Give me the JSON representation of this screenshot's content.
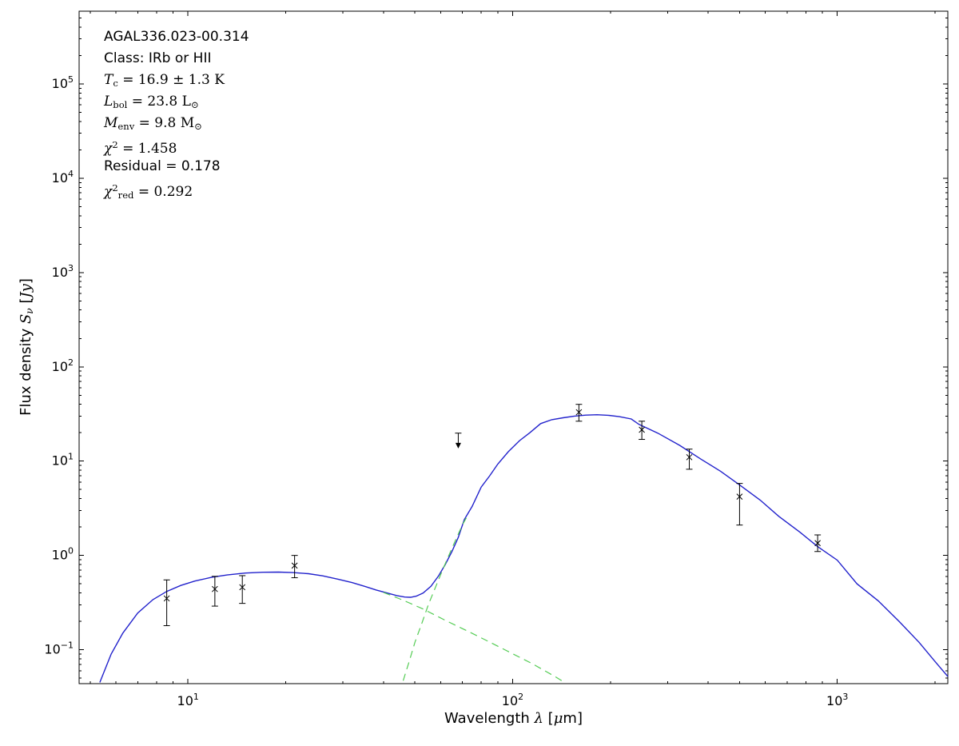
{
  "annotation": {
    "lines": [
      {
        "math": false,
        "segments": [
          {
            "t": "AGAL336.023-00.314",
            "s": "n"
          }
        ]
      },
      {
        "math": false,
        "segments": [
          {
            "t": "Class: IRb or HII",
            "s": "n"
          }
        ]
      },
      {
        "math": true,
        "segments": [
          {
            "t": "T",
            "s": "i"
          },
          {
            "t": "c",
            "s": "sub"
          },
          {
            "t": " = 16.9 ± 1.3 K",
            "s": "n"
          }
        ]
      },
      {
        "math": true,
        "segments": [
          {
            "t": "L",
            "s": "i"
          },
          {
            "t": "bol",
            "s": "sub"
          },
          {
            "t": " = 23.8 L",
            "s": "n"
          },
          {
            "t": "⊙",
            "s": "sub"
          }
        ]
      },
      {
        "math": true,
        "segments": [
          {
            "t": "M",
            "s": "i"
          },
          {
            "t": "env",
            "s": "sub"
          },
          {
            "t": " = 9.8 M",
            "s": "n"
          },
          {
            "t": "⊙",
            "s": "sub"
          }
        ]
      },
      {
        "math": true,
        "segments": [
          {
            "t": "χ",
            "s": "i"
          },
          {
            "t": "2",
            "s": "sup"
          },
          {
            "t": " = 1.458",
            "s": "n"
          }
        ]
      },
      {
        "math": false,
        "segments": [
          {
            "t": "Residual = 0.178",
            "s": "n"
          }
        ]
      },
      {
        "math": true,
        "segments": [
          {
            "t": "χ",
            "s": "i"
          },
          {
            "t": "2",
            "s": "sup"
          },
          {
            "t": "red",
            "s": "sub"
          },
          {
            "t": " = 0.292",
            "s": "n"
          }
        ]
      }
    ]
  },
  "axes_labels": {
    "xlabel_segments": [
      {
        "t": "Wavelength ",
        "s": "n"
      },
      {
        "t": "λ",
        "s": "i"
      },
      {
        "t": " [",
        "s": "n"
      },
      {
        "t": "μ",
        "s": "i"
      },
      {
        "t": "m]",
        "s": "n"
      }
    ],
    "ylabel_segments": [
      {
        "t": "Flux density ",
        "s": "n"
      },
      {
        "t": "S",
        "s": "i"
      },
      {
        "t": "ν",
        "s": "subi"
      },
      {
        "t": " [",
        "s": "n"
      },
      {
        "t": "Jy",
        "s": "i"
      },
      {
        "t": "]",
        "s": "n"
      }
    ]
  },
  "chart_data": {
    "type": "line",
    "title": "",
    "xlabel": "Wavelength λ [μm]",
    "ylabel": "Flux density Sν [Jy]",
    "grid": false,
    "legend": "none",
    "x_axis": {
      "scale": "log",
      "min": 4.62,
      "max": 2190,
      "major_tick_exponents": [
        1,
        2,
        3
      ]
    },
    "y_axis": {
      "scale": "log",
      "min": 0.0437,
      "max": 590000,
      "major_tick_exponents": [
        -1,
        0,
        1,
        2,
        3,
        4,
        5
      ]
    },
    "colors": {
      "model": "#2222cc",
      "components": "#55cc55",
      "data": "#000000",
      "frame": "#000000"
    },
    "series": [
      {
        "name": "total-model",
        "style": "solid",
        "color": "#2222cc",
        "width": 1.4,
        "points": [
          [
            5.35,
            0.045
          ],
          [
            5.8,
            0.09
          ],
          [
            6.3,
            0.15
          ],
          [
            7.0,
            0.245
          ],
          [
            7.8,
            0.34
          ],
          [
            8.6,
            0.415
          ],
          [
            9.5,
            0.48
          ],
          [
            10.5,
            0.535
          ],
          [
            11.8,
            0.585
          ],
          [
            13.2,
            0.62
          ],
          [
            15,
            0.65
          ],
          [
            17,
            0.663
          ],
          [
            19,
            0.665
          ],
          [
            21,
            0.658
          ],
          [
            23.5,
            0.64
          ],
          [
            26,
            0.607
          ],
          [
            29,
            0.56
          ],
          [
            32,
            0.515
          ],
          [
            35,
            0.47
          ],
          [
            38,
            0.43
          ],
          [
            41,
            0.4
          ],
          [
            44,
            0.375
          ],
          [
            46.5,
            0.362
          ],
          [
            48.5,
            0.36
          ],
          [
            50.5,
            0.37
          ],
          [
            53,
            0.4
          ],
          [
            56,
            0.47
          ],
          [
            59,
            0.6
          ],
          [
            62,
            0.8
          ],
          [
            65,
            1.1
          ],
          [
            68,
            1.55
          ],
          [
            71,
            2.4
          ],
          [
            75,
            3.3
          ],
          [
            80,
            5.3
          ],
          [
            85,
            7.0
          ],
          [
            90,
            9.3
          ],
          [
            97,
            12.6
          ],
          [
            105,
            16.5
          ],
          [
            113,
            20.0
          ],
          [
            122,
            25.0
          ],
          [
            132,
            27.5
          ],
          [
            143,
            28.8
          ],
          [
            155,
            30.0
          ],
          [
            168,
            30.7
          ],
          [
            182,
            31.0
          ],
          [
            197,
            30.6
          ],
          [
            213,
            29.6
          ],
          [
            232,
            28.0
          ],
          [
            245,
            24.5
          ],
          [
            280,
            19.8
          ],
          [
            327,
            14.7
          ],
          [
            380,
            10.5
          ],
          [
            437,
            7.8
          ],
          [
            500,
            5.6
          ],
          [
            579,
            3.86
          ],
          [
            660,
            2.6
          ],
          [
            768,
            1.76
          ],
          [
            870,
            1.24
          ],
          [
            1000,
            0.89
          ],
          [
            1150,
            0.5
          ],
          [
            1337,
            0.33
          ],
          [
            1550,
            0.2
          ],
          [
            1786,
            0.12
          ],
          [
            2000,
            0.075
          ],
          [
            2190,
            0.052
          ]
        ]
      },
      {
        "name": "warm-component",
        "style": "dashed",
        "color": "#55cc55",
        "width": 1.2,
        "points": [
          [
            40,
            0.405
          ],
          [
            46,
            0.335
          ],
          [
            53,
            0.27
          ],
          [
            62,
            0.205
          ],
          [
            72,
            0.16
          ],
          [
            84,
            0.123
          ],
          [
            98,
            0.094
          ],
          [
            115,
            0.071
          ],
          [
            135,
            0.052
          ],
          [
            143,
            0.046
          ]
        ]
      },
      {
        "name": "cold-component",
        "style": "dashed",
        "color": "#55cc55",
        "width": 1.2,
        "points": [
          [
            46,
            0.047
          ],
          [
            48,
            0.075
          ],
          [
            50,
            0.12
          ],
          [
            52.5,
            0.19
          ],
          [
            55,
            0.3
          ],
          [
            58,
            0.47
          ],
          [
            61,
            0.72
          ],
          [
            64,
            1.05
          ],
          [
            67,
            1.5
          ],
          [
            70,
            2.1
          ],
          [
            72,
            2.5
          ]
        ]
      }
    ],
    "data_points": [
      {
        "x": 8.6,
        "y": 0.35,
        "lo": 0.18,
        "hi": 0.55
      },
      {
        "x": 12.1,
        "y": 0.44,
        "lo": 0.29,
        "hi": 0.6
      },
      {
        "x": 14.7,
        "y": 0.46,
        "lo": 0.31,
        "hi": 0.61
      },
      {
        "x": 21.3,
        "y": 0.78,
        "lo": 0.58,
        "hi": 1.0
      },
      {
        "x": 160,
        "y": 33.0,
        "lo": 26.5,
        "hi": 40.0
      },
      {
        "x": 250,
        "y": 21.5,
        "lo": 17.0,
        "hi": 26.5
      },
      {
        "x": 350,
        "y": 11.0,
        "lo": 8.2,
        "hi": 13.4
      },
      {
        "x": 500,
        "y": 4.2,
        "lo": 2.1,
        "hi": 5.8
      },
      {
        "x": 870,
        "y": 1.35,
        "lo": 1.1,
        "hi": 1.65
      }
    ],
    "upper_limit": {
      "x": 68,
      "y": 19.8,
      "arrow_to": 15.0
    }
  }
}
